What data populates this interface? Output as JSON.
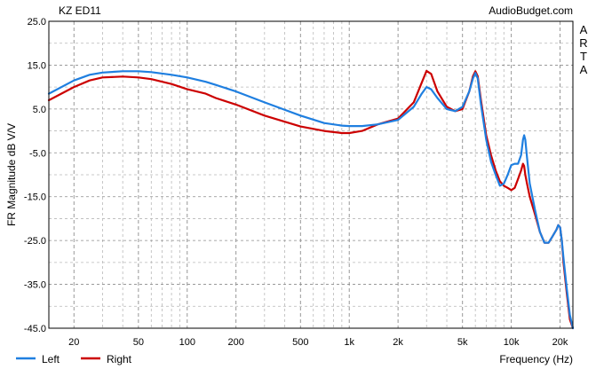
{
  "chart_data": {
    "type": "line",
    "title": "KZ ED11",
    "watermark": "AudioBudget.com",
    "side_label": "ARTA",
    "xlabel": "Frequency (Hz)",
    "ylabel": "FR Magnitude dB V/V",
    "x_scale": "log",
    "xlim": [
      14,
      24000
    ],
    "ylim": [
      -45,
      25
    ],
    "y_ticks": [
      25,
      15,
      5,
      -5,
      -15,
      -25,
      -35,
      -45
    ],
    "y_tick_labels": [
      "25.0",
      "15.0",
      "5.0",
      "-5.0",
      "-15.0",
      "-25.0",
      "-35.0",
      "-45.0"
    ],
    "x_ticks": [
      20,
      50,
      100,
      200,
      500,
      1000,
      2000,
      5000,
      10000,
      20000
    ],
    "x_tick_labels": [
      "20",
      "50",
      "100",
      "200",
      "500",
      "1k",
      "2k",
      "5k",
      "10k",
      "20k"
    ],
    "grid": true,
    "legend_position": "bottom-left",
    "series": [
      {
        "name": "Left",
        "color": "#1f7fe0",
        "x": [
          14,
          20,
          25,
          30,
          40,
          50,
          60,
          80,
          100,
          130,
          150,
          200,
          300,
          500,
          700,
          900,
          1000,
          1200,
          1500,
          2000,
          2500,
          2800,
          3000,
          3200,
          3500,
          4000,
          4500,
          5000,
          5500,
          5800,
          6000,
          6200,
          6500,
          7000,
          7500,
          8000,
          8500,
          9000,
          9500,
          10000,
          10500,
          11000,
          11500,
          11800,
          12000,
          12200,
          12500,
          13000,
          14000,
          15000,
          16000,
          17000,
          18000,
          19000,
          19500,
          20000,
          20500,
          21000,
          22000,
          23000,
          24000
        ],
        "y": [
          8.5,
          11.5,
          12.8,
          13.3,
          13.6,
          13.6,
          13.4,
          12.8,
          12.2,
          11.2,
          10.5,
          9.0,
          6.5,
          3.5,
          1.8,
          1.2,
          1.1,
          1.1,
          1.5,
          2.5,
          5.5,
          8.5,
          10.0,
          9.5,
          7.5,
          5.0,
          4.5,
          5.5,
          9.0,
          12.0,
          13.2,
          12.0,
          6.0,
          -2.0,
          -7.0,
          -10.0,
          -12.5,
          -12.0,
          -10.0,
          -7.8,
          -7.5,
          -7.5,
          -5.5,
          -2.0,
          -1.0,
          -2.0,
          -6.0,
          -12.0,
          -18.0,
          -23.0,
          -25.5,
          -25.5,
          -24.0,
          -22.5,
          -21.5,
          -22.0,
          -25.0,
          -29.0,
          -36.0,
          -42.0,
          -45.0
        ]
      },
      {
        "name": "Right",
        "color": "#cc0000",
        "x": [
          14,
          20,
          25,
          30,
          40,
          50,
          60,
          80,
          100,
          130,
          150,
          200,
          300,
          500,
          700,
          900,
          1000,
          1200,
          1500,
          2000,
          2500,
          2800,
          3000,
          3200,
          3500,
          4000,
          4500,
          5000,
          5500,
          5800,
          6000,
          6200,
          6500,
          7000,
          7500,
          8000,
          8500,
          9000,
          9500,
          10000,
          10500,
          11000,
          11500,
          11800,
          12000,
          12200,
          12500,
          13000,
          14000,
          15000,
          16000,
          17000,
          18000,
          19000,
          19500,
          20000,
          20500,
          21000,
          22000,
          23000,
          24000
        ],
        "y": [
          7.0,
          10.0,
          11.5,
          12.2,
          12.4,
          12.2,
          11.8,
          10.7,
          9.5,
          8.5,
          7.5,
          6.0,
          3.5,
          1.0,
          0.0,
          -0.5,
          -0.5,
          0.0,
          1.5,
          2.8,
          6.5,
          11.0,
          13.7,
          13.0,
          9.0,
          5.5,
          4.5,
          5.0,
          9.0,
          12.5,
          13.6,
          12.5,
          7.0,
          -1.0,
          -5.5,
          -9.0,
          -11.5,
          -12.5,
          -13.0,
          -13.5,
          -13.0,
          -11.0,
          -9.0,
          -7.5,
          -8.0,
          -10.0,
          -12.0,
          -15.0,
          -19.0,
          -23.0,
          -25.5,
          -25.5,
          -24.0,
          -22.5,
          -21.5,
          -22.0,
          -25.0,
          -30.0,
          -37.0,
          -43.0,
          -45.0
        ]
      }
    ]
  }
}
